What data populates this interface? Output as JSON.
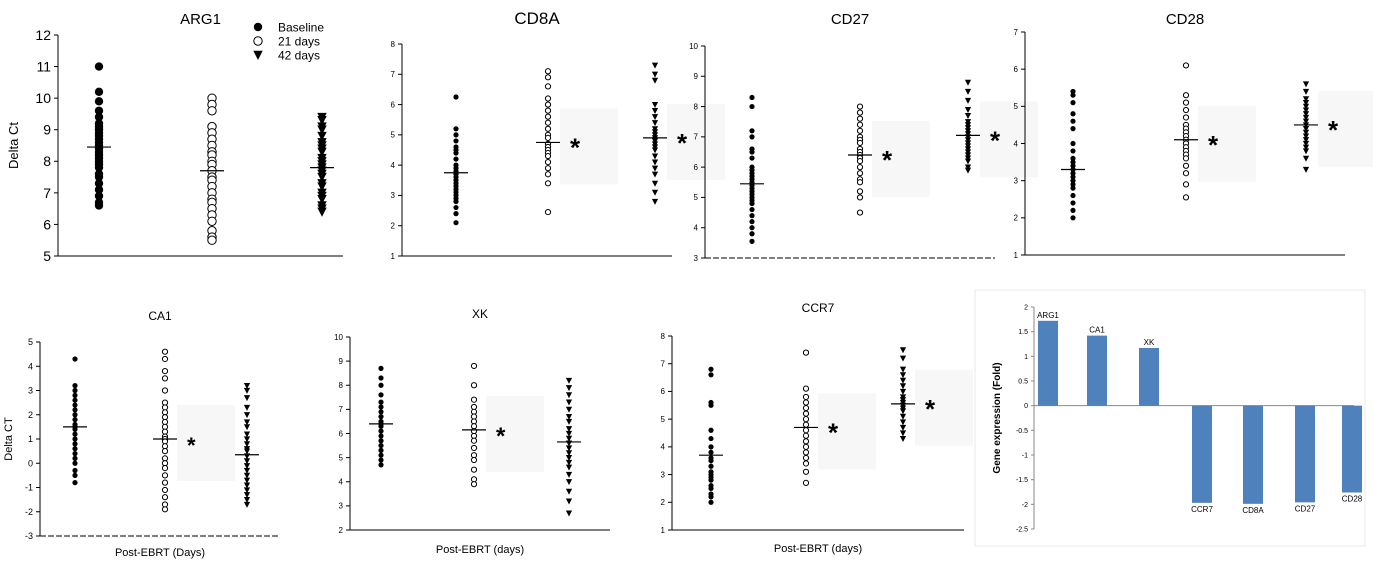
{
  "chart_data": [
    {
      "id": "arg1",
      "type": "scatter",
      "title": "ARG1",
      "ylabel": "Delta Ct",
      "xlabel": "",
      "ylim": [
        5,
        12
      ],
      "yticks": [
        5,
        6,
        7,
        8,
        9,
        10,
        11,
        12
      ],
      "legend": {
        "placement": "top-right",
        "entries": [
          "Baseline",
          "21 days",
          "42 days"
        ]
      },
      "series": [
        {
          "name": "Baseline",
          "marker": "filled-circle",
          "mean": 8.45,
          "values": [
            11.0,
            10.2,
            9.9,
            9.6,
            9.4,
            9.2,
            9.1,
            9.0,
            8.9,
            8.8,
            8.7,
            8.6,
            8.5,
            8.4,
            8.3,
            8.2,
            8.1,
            8.0,
            7.9,
            7.8,
            7.6,
            7.5,
            7.3,
            7.1,
            6.9,
            6.7,
            6.6
          ]
        },
        {
          "name": "21 days",
          "marker": "open-circle",
          "mean": 7.7,
          "values": [
            10.0,
            9.8,
            9.6,
            9.1,
            8.9,
            8.7,
            8.5,
            8.3,
            8.2,
            8.0,
            7.9,
            7.7,
            7.5,
            7.4,
            7.2,
            7.0,
            6.8,
            6.7,
            6.5,
            6.3,
            6.1,
            5.8,
            5.6,
            5.5
          ]
        },
        {
          "name": "42 days",
          "marker": "filled-triangle-down",
          "mean": 7.8,
          "values": [
            9.4,
            9.3,
            9.1,
            9.0,
            8.8,
            8.6,
            8.5,
            8.4,
            8.3,
            8.1,
            8.0,
            7.9,
            7.8,
            7.7,
            7.6,
            7.5,
            7.3,
            7.2,
            7.0,
            6.9,
            6.8,
            6.6,
            6.5,
            6.4
          ]
        }
      ],
      "significance": []
    },
    {
      "id": "cd8a",
      "type": "scatter",
      "title": "CD8A",
      "ylabel": "",
      "xlabel": "",
      "ylim": [
        1,
        8
      ],
      "yticks": [
        1,
        2,
        3,
        4,
        5,
        6,
        7,
        8
      ],
      "series": [
        {
          "name": "Baseline",
          "marker": "filled-circle",
          "mean": 3.75,
          "values": [
            6.25,
            5.2,
            5.0,
            4.8,
            4.6,
            4.5,
            4.4,
            4.2,
            4.0,
            3.9,
            3.8,
            3.7,
            3.6,
            3.5,
            3.4,
            3.3,
            3.2,
            3.1,
            3.0,
            2.9,
            2.8,
            2.6,
            2.4,
            2.1
          ]
        },
        {
          "name": "21 days",
          "marker": "open-circle",
          "mean": 4.75,
          "values": [
            7.1,
            6.9,
            6.6,
            6.2,
            6.0,
            5.8,
            5.6,
            5.4,
            5.2,
            5.0,
            4.9,
            4.7,
            4.6,
            4.5,
            4.4,
            4.3,
            4.1,
            3.9,
            3.7,
            3.4,
            2.45
          ]
        },
        {
          "name": "42 days",
          "marker": "filled-triangle-down",
          "mean": 4.9,
          "values": [
            7.3,
            7.0,
            6.8,
            6.0,
            5.8,
            5.6,
            5.4,
            5.2,
            5.1,
            5.0,
            4.9,
            4.8,
            4.7,
            4.6,
            4.5,
            4.3,
            4.1,
            3.9,
            3.7,
            3.4,
            3.1,
            2.8
          ]
        }
      ],
      "significance": [
        "",
        "*",
        "*"
      ]
    },
    {
      "id": "cd27",
      "type": "scatter",
      "title": "CD27",
      "ylabel": "",
      "xlabel": "",
      "ylim": [
        3,
        10
      ],
      "yticks": [
        3,
        4,
        5,
        6,
        7,
        8,
        9,
        10
      ],
      "series": [
        {
          "name": "Baseline",
          "marker": "filled-circle",
          "mean": 5.45,
          "values": [
            8.3,
            8.0,
            7.2,
            7.0,
            6.6,
            6.5,
            6.3,
            6.0,
            5.9,
            5.8,
            5.7,
            5.6,
            5.5,
            5.4,
            5.3,
            5.2,
            5.1,
            5.0,
            4.9,
            4.8,
            4.6,
            4.4,
            4.2,
            4.0,
            3.8,
            3.55
          ]
        },
        {
          "name": "21 days",
          "marker": "open-circle",
          "mean": 6.4,
          "values": [
            8.0,
            7.8,
            7.6,
            7.4,
            7.2,
            7.0,
            6.9,
            6.8,
            6.6,
            6.5,
            6.4,
            6.3,
            6.2,
            6.0,
            5.8,
            5.6,
            5.5,
            5.2,
            5.0,
            4.5
          ]
        },
        {
          "name": "42 days",
          "marker": "filled-triangle-down",
          "mean": 7.05,
          "values": [
            8.8,
            8.5,
            8.2,
            7.9,
            7.7,
            7.5,
            7.4,
            7.3,
            7.2,
            7.1,
            7.0,
            6.9,
            6.8,
            6.7,
            6.6,
            6.5,
            6.4,
            6.3,
            6.2,
            6.0,
            5.9
          ]
        }
      ],
      "significance": [
        "",
        "*",
        "*"
      ]
    },
    {
      "id": "cd28",
      "type": "scatter",
      "title": "CD28",
      "ylabel": "",
      "xlabel": "",
      "ylim": [
        1,
        7
      ],
      "yticks": [
        1,
        2,
        3,
        4,
        5,
        6,
        7
      ],
      "series": [
        {
          "name": "Baseline",
          "marker": "filled-circle",
          "mean": 3.3,
          "values": [
            5.4,
            5.3,
            5.1,
            4.8,
            4.6,
            4.4,
            4.0,
            3.8,
            3.6,
            3.5,
            3.4,
            3.3,
            3.2,
            3.1,
            3.0,
            2.9,
            2.8,
            2.6,
            2.4,
            2.2,
            2.0
          ]
        },
        {
          "name": "21 days",
          "marker": "open-circle",
          "mean": 4.1,
          "values": [
            6.1,
            5.3,
            5.1,
            4.9,
            4.7,
            4.5,
            4.4,
            4.3,
            4.2,
            4.1,
            4.0,
            3.9,
            3.8,
            3.7,
            3.6,
            3.4,
            3.2,
            2.9,
            2.55
          ]
        },
        {
          "name": "42 days",
          "marker": "filled-triangle-down",
          "mean": 4.5,
          "values": [
            5.6,
            5.4,
            5.2,
            5.1,
            5.0,
            4.9,
            4.8,
            4.7,
            4.6,
            4.5,
            4.4,
            4.3,
            4.2,
            4.1,
            4.0,
            3.9,
            3.8,
            3.6,
            3.3
          ]
        }
      ],
      "significance": [
        "",
        "*",
        "*"
      ]
    },
    {
      "id": "ca1",
      "type": "scatter",
      "title": "CA1",
      "ylabel": "Delta CT",
      "xlabel": "Post-EBRT (Days)",
      "ylim": [
        -3,
        5
      ],
      "yticks": [
        -3,
        -2,
        -1,
        0,
        1,
        2,
        3,
        4,
        5
      ],
      "series": [
        {
          "name": "Baseline",
          "marker": "filled-circle",
          "mean": 1.5,
          "values": [
            4.3,
            3.2,
            3.0,
            2.8,
            2.6,
            2.4,
            2.2,
            2.0,
            1.8,
            1.6,
            1.5,
            1.4,
            1.2,
            1.0,
            0.8,
            0.6,
            0.4,
            0.2,
            0.0,
            -0.3,
            -0.5,
            -0.8
          ]
        },
        {
          "name": "21 days",
          "marker": "open-circle",
          "mean": 1.0,
          "values": [
            4.6,
            4.3,
            3.8,
            3.5,
            3.0,
            2.5,
            2.3,
            2.1,
            1.9,
            1.7,
            1.5,
            1.3,
            1.1,
            1.0,
            0.9,
            0.7,
            0.5,
            0.2,
            0.0,
            -0.2,
            -0.5,
            -0.8,
            -1.1,
            -1.4,
            -1.7,
            -1.9
          ]
        },
        {
          "name": "42 days",
          "marker": "filled-triangle-down",
          "mean": 0.35,
          "values": [
            3.2,
            3.0,
            2.7,
            2.3,
            2.0,
            1.7,
            1.5,
            1.2,
            1.0,
            0.8,
            0.6,
            0.5,
            0.3,
            0.1,
            -0.1,
            -0.3,
            -0.5,
            -0.7,
            -0.9,
            -1.1,
            -1.3,
            -1.5,
            -1.7
          ]
        }
      ],
      "significance": [
        "",
        "*",
        ""
      ]
    },
    {
      "id": "xk",
      "type": "scatter",
      "title": "XK",
      "ylabel": "",
      "xlabel": "Post-EBRT (days)",
      "ylim": [
        2,
        10
      ],
      "yticks": [
        2,
        3,
        4,
        5,
        6,
        7,
        8,
        9,
        10
      ],
      "series": [
        {
          "name": "Baseline",
          "marker": "filled-circle",
          "mean": 6.4,
          "values": [
            8.7,
            8.3,
            8.0,
            7.6,
            7.3,
            7.1,
            6.9,
            6.7,
            6.5,
            6.4,
            6.3,
            6.1,
            5.9,
            5.7,
            5.5,
            5.3,
            5.1,
            4.9,
            4.7
          ]
        },
        {
          "name": "21 days",
          "marker": "open-circle",
          "mean": 6.15,
          "values": [
            8.8,
            8.0,
            7.4,
            7.1,
            6.9,
            6.7,
            6.5,
            6.3,
            6.1,
            5.9,
            5.7,
            5.4,
            5.1,
            4.9,
            4.5,
            4.1,
            3.9
          ]
        },
        {
          "name": "42 days",
          "marker": "filled-triangle-down",
          "mean": 5.65,
          "values": [
            8.2,
            7.9,
            7.6,
            7.3,
            7.0,
            6.7,
            6.5,
            6.2,
            6.0,
            5.8,
            5.6,
            5.4,
            5.2,
            5.0,
            4.8,
            4.6,
            4.3,
            4.0,
            3.6,
            3.2,
            2.7
          ]
        }
      ],
      "significance": [
        "",
        "*",
        ""
      ]
    },
    {
      "id": "ccr7",
      "type": "scatter",
      "title": "CCR7",
      "ylabel": "",
      "xlabel": "Post-EBRT (days)",
      "ylim": [
        1,
        8
      ],
      "yticks": [
        1,
        2,
        3,
        4,
        5,
        6,
        7,
        8
      ],
      "series": [
        {
          "name": "Baseline",
          "marker": "filled-circle",
          "mean": 3.7,
          "values": [
            6.8,
            6.6,
            5.6,
            5.5,
            4.6,
            4.3,
            4.0,
            3.8,
            3.6,
            3.5,
            3.3,
            3.1,
            3.0,
            2.9,
            2.8,
            2.6,
            2.5,
            2.3,
            2.2,
            2.0
          ]
        },
        {
          "name": "21 days",
          "marker": "open-circle",
          "mean": 4.7,
          "values": [
            7.4,
            6.1,
            5.8,
            5.6,
            5.4,
            5.2,
            5.0,
            4.8,
            4.6,
            4.4,
            4.2,
            4.0,
            3.8,
            3.6,
            3.4,
            3.1,
            2.7
          ]
        },
        {
          "name": "42 days",
          "marker": "filled-triangle-down",
          "mean": 5.55,
          "values": [
            7.5,
            7.2,
            6.8,
            6.6,
            6.4,
            6.2,
            6.0,
            5.8,
            5.7,
            5.6,
            5.5,
            5.4,
            5.3,
            5.1,
            4.9,
            4.7,
            4.5,
            4.3
          ]
        }
      ],
      "significance": [
        "",
        "*",
        "*"
      ]
    },
    {
      "id": "fold",
      "type": "bar",
      "title": "",
      "ylabel": "Gene expression (Fold)",
      "xlabel": "",
      "ylim": [
        -2.5,
        2
      ],
      "yticks": [
        -2.5,
        -2,
        -1.5,
        -1,
        -0.5,
        0,
        0.5,
        1,
        1.5,
        2
      ],
      "ytick_labels": [
        "-2.5",
        "-2",
        "-1.5",
        "-1",
        "-0.5",
        "0",
        "0.5",
        "1",
        "1.5",
        "2"
      ],
      "categories": [
        "ARG1",
        "CA1",
        "XK",
        "CCR7",
        "CD8A",
        "CD27",
        "CD28"
      ],
      "values": [
        1.72,
        1.42,
        1.17,
        -1.97,
        -1.99,
        -1.96,
        -1.76
      ],
      "bar_color": "#4f81bd"
    }
  ]
}
